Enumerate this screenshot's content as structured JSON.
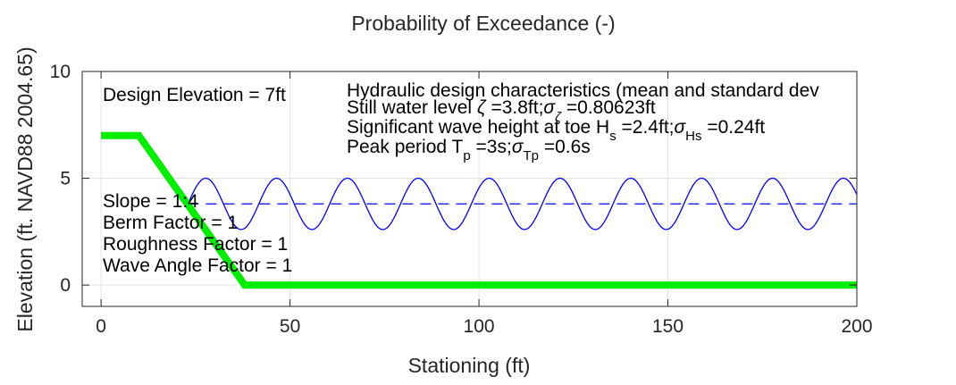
{
  "chart_data": {
    "type": "line",
    "title": "Probability of Exceedance (-)",
    "xlabel": "Stationing (ft)",
    "ylabel": "Elevation (ft. NAVD88 2004.65)",
    "xlim": [
      -5,
      200
    ],
    "ylim": [
      -1,
      10
    ],
    "xticks": [
      0,
      50,
      100,
      150,
      200
    ],
    "yticks": [
      0,
      5,
      10
    ],
    "grid": true,
    "series": [
      {
        "role": "levee-profile",
        "color": "#00ee00",
        "x": [
          0,
          10,
          38,
          200
        ],
        "y": [
          7,
          7,
          0,
          0
        ]
      },
      {
        "role": "still-water-level",
        "color": "#0000ff",
        "style": "dashed",
        "x": [
          23,
          200
        ],
        "y": [
          3.8,
          3.8
        ]
      },
      {
        "role": "wave",
        "color": "#0000ff",
        "x_start": 23,
        "x_end": 200,
        "mean": 3.8,
        "amplitude": 1.2,
        "period_ft": 18.75
      }
    ],
    "annotations": {
      "design_elevation": "Design Elevation = 7ft",
      "slope": "Slope = 1:4",
      "berm": "Berm Factor = 1",
      "roughness": "Roughness Factor = 1",
      "wave_angle": "Wave Angle Factor = 1",
      "hydraulic_heading": "Hydraulic design characteristics (mean and standard dev",
      "swl": {
        "a": "Still water level ",
        "zeta": "ζ",
        "b": " =3.8ft;",
        "sigma": "σ",
        "sub": "ζ",
        "c": " =0.80623ft"
      },
      "wave_height": {
        "a": "Significant wave height at toe H",
        "sub1": "s",
        "b": " =2.4ft;",
        "sigma": "σ",
        "sub2": "Hs",
        "c": " =0.24ft"
      },
      "period": {
        "a": "Peak period T",
        "sub1": "p",
        "b": " =3s;",
        "sigma": "σ",
        "sub2": "Tp",
        "c": " =0.6s"
      }
    }
  }
}
